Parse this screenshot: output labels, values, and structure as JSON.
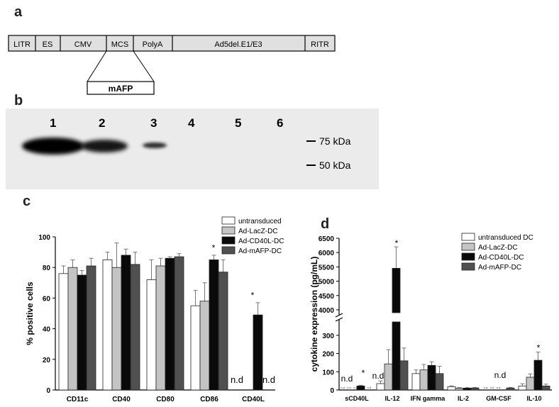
{
  "panels": {
    "a": "a",
    "b": "b",
    "c": "c",
    "d": "d"
  },
  "construct": {
    "segments": [
      "LITR",
      "ES",
      "CMV",
      "MCS",
      "PolyA",
      "Ad5del.E1/E3",
      "RITR"
    ],
    "insert": "mAFP"
  },
  "blot": {
    "lanes": [
      "1",
      "2",
      "3",
      "4",
      "5",
      "6"
    ],
    "markers": [
      "75 kDa",
      "50 kDa"
    ]
  },
  "colors": {
    "untransduced": "#ffffff",
    "lacz": "#c4c4c4",
    "cd40l": "#0a0a0a",
    "mafp": "#505050"
  },
  "chart_data": [
    {
      "type": "bar",
      "ylabel": "% positive cells",
      "ylim": [
        0,
        100
      ],
      "yticks": [
        "0",
        "20",
        "40",
        "60",
        "80",
        "100"
      ],
      "categories": [
        "CD11c",
        "CD40",
        "CD80",
        "CD86",
        "CD40L"
      ],
      "series": [
        {
          "name": "untransduced",
          "values": [
            76,
            85,
            72,
            55,
            0
          ],
          "errors": [
            5,
            5,
            13,
            10,
            0
          ]
        },
        {
          "name": "Ad-LacZ-DC",
          "values": [
            80,
            80,
            81,
            58,
            0
          ],
          "errors": [
            5,
            16,
            5,
            12,
            0
          ]
        },
        {
          "name": "Ad-CD40L-DC",
          "values": [
            75,
            88,
            86,
            85,
            49
          ],
          "errors": [
            3,
            4,
            1,
            3,
            8
          ]
        },
        {
          "name": "Ad-mAFP-DC",
          "values": [
            81,
            82,
            87,
            77,
            0
          ],
          "errors": [
            5,
            8,
            2,
            8,
            0
          ]
        }
      ],
      "annotations": [
        "*",
        "*",
        "n.d",
        "n.d"
      ],
      "legend": "top-right"
    },
    {
      "type": "bar",
      "ylabel": "cytokine expression  (pg/mL)",
      "yticks_lower": [
        "0",
        "100",
        "200",
        "300"
      ],
      "yticks_upper": [
        "4000",
        "4500",
        "5000",
        "5500",
        "6000",
        "6500"
      ],
      "axis_break": [
        350,
        3900
      ],
      "categories": [
        "sCD40L",
        "IL-12",
        "IFN gamma",
        "IL-2",
        "GM-CSF",
        "IL-10"
      ],
      "series": [
        {
          "name": "untransduced DC",
          "values": [
            0,
            35,
            90,
            18,
            0,
            22
          ],
          "errors": [
            0,
            15,
            20,
            5,
            0,
            12
          ]
        },
        {
          "name": "Ad-LacZ-DC",
          "values": [
            0,
            143,
            110,
            10,
            0,
            70
          ],
          "errors": [
            0,
            78,
            30,
            3,
            0,
            18
          ]
        },
        {
          "name": "Ad-CD40L-DC",
          "values": [
            22,
            5450,
            135,
            10,
            0,
            163
          ],
          "errors": [
            4,
            750,
            20,
            3,
            0,
            45
          ]
        },
        {
          "name": "Ad-mAFP-DC",
          "values": [
            0,
            160,
            90,
            11,
            11,
            22
          ],
          "errors": [
            0,
            70,
            40,
            3,
            3,
            10
          ]
        }
      ],
      "annotations": [
        "n.d",
        "n.d",
        "*",
        "n.d",
        "*",
        "*"
      ],
      "small_labels": [
        "n.d",
        "n.d",
        "n.d",
        "n.d.",
        "n.d.",
        "n.d.",
        "n.d."
      ],
      "legend": "top-right"
    }
  ]
}
